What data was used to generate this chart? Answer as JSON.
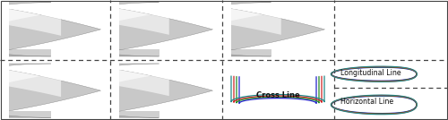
{
  "figsize": [
    5.0,
    1.34
  ],
  "dpi": 100,
  "bg_color": "#ffffff",
  "dashed_line_color": "#444444",
  "line_colors_cross": [
    "#2222cc",
    "#228822",
    "#cc2222",
    "#228888"
  ],
  "line_colors_long": [
    "#2222cc",
    "#228822",
    "#cc2222",
    "#228888"
  ],
  "line_colors_horiz": [
    "#2222cc",
    "#228822",
    "#cc2222",
    "#228888"
  ],
  "cross_line_label": "Cross Line",
  "longitudinal_label": "Longitudinal Line",
  "horizontal_label": "Horizontal Line",
  "label_fontsize": 6.0,
  "col_boundaries": [
    0.0,
    0.245,
    0.495,
    0.745,
    1.0
  ],
  "row_boundary": 0.5
}
